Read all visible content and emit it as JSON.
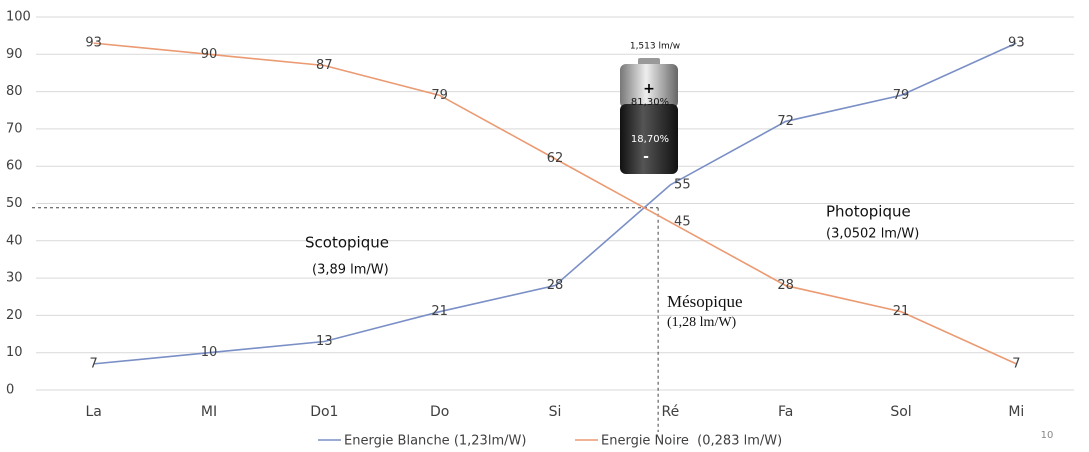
{
  "chart_data": {
    "type": "line",
    "categories": [
      "La",
      "MI",
      "Do1",
      "Do",
      "Si",
      "Ré",
      "Fa",
      "Sol",
      "Mi"
    ],
    "series": [
      {
        "name": "Energie Blanche (1,23lm/W)",
        "color": "#7a8fc6",
        "values": [
          7,
          10,
          13,
          21,
          28,
          55,
          72,
          79,
          93
        ]
      },
      {
        "name": "Energie Noire  (0,283 lm/W)",
        "color": "#eb9a72",
        "values": [
          93,
          90,
          87,
          79,
          62,
          45,
          28,
          21,
          7
        ]
      }
    ],
    "ylim": [
      0,
      100
    ],
    "yticks": [
      0,
      10,
      20,
      30,
      40,
      50,
      60,
      70,
      80,
      90,
      100
    ],
    "grid": true,
    "annotations": {
      "scotopique": "Scotopique",
      "scotopique_value": "(3,89 lm/W)",
      "photopique": "Photopique",
      "photopique_value": "(3,0502 lm/W)",
      "mesopique": "Mésopique",
      "mesopique_value": "(1,28 lm/W)",
      "battery_title": "1,513 lm/w",
      "battery_plus": "+",
      "battery_top": "81,30%",
      "battery_bottom": "18,70%",
      "battery_minus": "-"
    },
    "page_number": "10"
  }
}
